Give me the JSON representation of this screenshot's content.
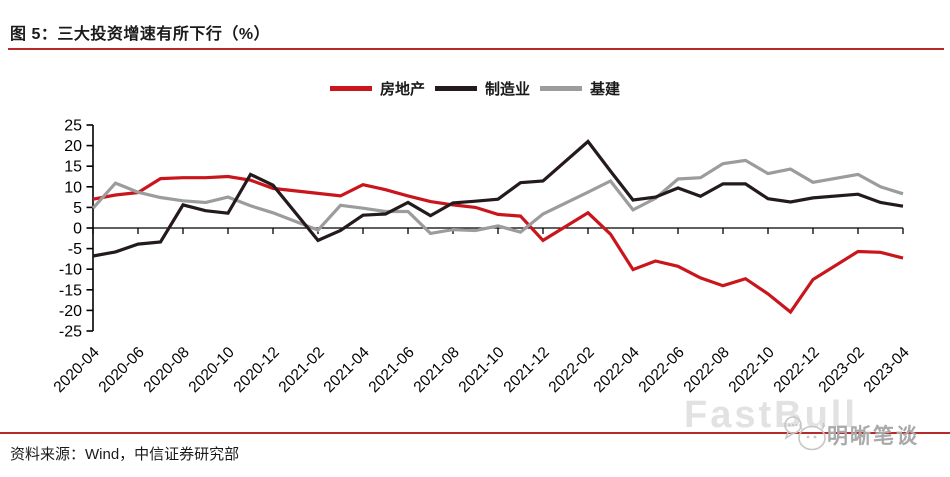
{
  "header": {
    "title": "图 5：三大投资增速有所下行（%）"
  },
  "source_note": "资料来源：Wind，中信证券研究部",
  "watermarks": {
    "fastbull": "FastBull",
    "mingxi": "明晰笔谈"
  },
  "accent_rule_color": "#B8292B",
  "axis_color": "#000000",
  "chart_data": {
    "type": "line",
    "title": "三大投资增速有所下行（%）",
    "xlabel": "",
    "ylabel": "",
    "ylim": [
      -25,
      25
    ],
    "ytick_step": 5,
    "grid": false,
    "legend_position": "top-center",
    "x": [
      "2020-04",
      "2020-05",
      "2020-06",
      "2020-07",
      "2020-08",
      "2020-09",
      "2020-10",
      "2020-11",
      "2020-12",
      "2021-02",
      "2021-03",
      "2021-04",
      "2021-05",
      "2021-06",
      "2021-07",
      "2021-08",
      "2021-09",
      "2021-10",
      "2021-11",
      "2021-12",
      "2022-02",
      "2022-03",
      "2022-04",
      "2022-05",
      "2022-06",
      "2022-07",
      "2022-08",
      "2022-09",
      "2022-10",
      "2022-11",
      "2022-12",
      "2023-02",
      "2023-03",
      "2023-04"
    ],
    "x_tick_labels": [
      "2020-04",
      "2020-06",
      "2020-08",
      "2020-10",
      "2020-12",
      "2021-02",
      "2021-04",
      "2021-06",
      "2021-08",
      "2021-10",
      "2021-12",
      "2022-02",
      "2022-04",
      "2022-06",
      "2022-08",
      "2022-10",
      "2022-12",
      "2023-02",
      "2023-04"
    ],
    "series": [
      {
        "name": "房地产",
        "key": "real-estate",
        "color": "#C9161D",
        "values": [
          7.0,
          8.0,
          8.6,
          12.0,
          12.2,
          12.2,
          12.5,
          11.6,
          9.6,
          8.4,
          7.8,
          10.5,
          9.3,
          7.8,
          6.4,
          5.6,
          5.0,
          3.3,
          2.9,
          -3.0,
          3.7,
          -1.5,
          -10.1,
          -8.0,
          -9.3,
          -12.1,
          -14.0,
          -12.3,
          -16.0,
          -20.4,
          -12.5,
          -5.7,
          -5.9,
          -7.3
        ]
      },
      {
        "name": "制造业",
        "key": "manufacturing",
        "color": "#241A1C",
        "values": [
          -6.8,
          -5.8,
          -3.9,
          -3.4,
          5.6,
          4.2,
          3.6,
          13.0,
          10.4,
          -3.0,
          -0.6,
          3.1,
          3.4,
          6.2,
          3.0,
          6.1,
          6.5,
          7.0,
          11.0,
          11.4,
          21.0,
          13.8,
          6.8,
          7.5,
          9.7,
          7.7,
          10.7,
          10.7,
          7.1,
          6.3,
          7.3,
          8.2,
          6.2,
          5.3
        ]
      },
      {
        "name": "基建",
        "key": "infrastructure",
        "color": "#9C9C9C",
        "values": [
          4.8,
          10.9,
          8.7,
          7.4,
          6.6,
          6.2,
          7.5,
          5.4,
          3.7,
          -0.5,
          5.5,
          4.8,
          4.0,
          4.0,
          -1.3,
          -0.4,
          -0.6,
          0.5,
          -1.0,
          3.4,
          8.7,
          11.4,
          4.4,
          7.2,
          11.9,
          12.2,
          15.6,
          16.4,
          13.2,
          14.3,
          11.1,
          13.0,
          10.0,
          8.3
        ]
      }
    ]
  }
}
